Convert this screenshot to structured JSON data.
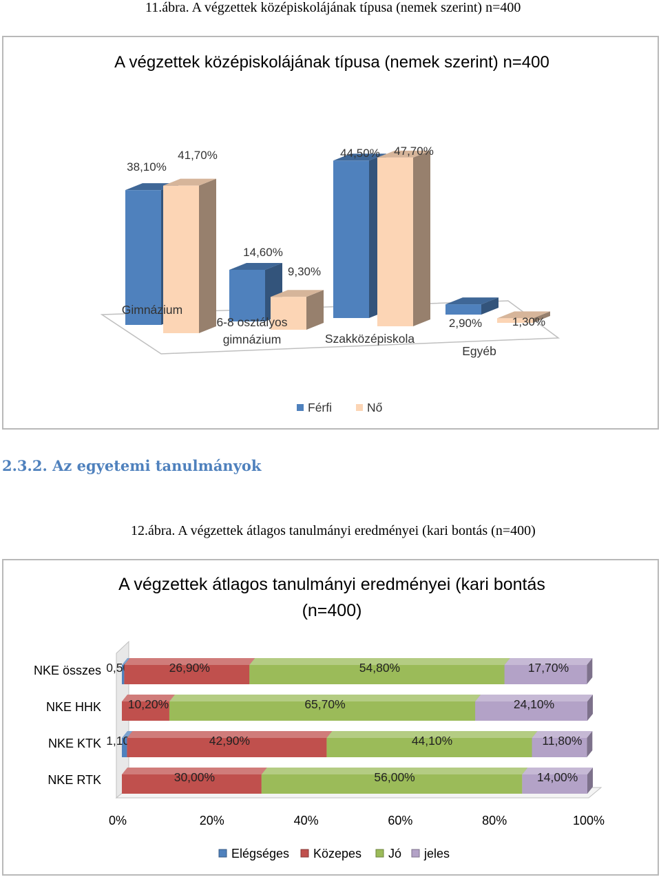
{
  "fig1": {
    "caption": "11.ábra. A végzettek középiskolájának típusa (nemek szerint) n=400",
    "chart_data": {
      "type": "bar",
      "title": "A végzettek középiskolájának típusa (nemek szerint) n=400",
      "categories": [
        "Gimnázium",
        "6-8 osztályos gimnázium",
        "Szakközépiskola",
        "Egyéb"
      ],
      "category_lines": [
        [
          "Gimnázium"
        ],
        [
          "6-8 osztályos",
          "gimnázium"
        ],
        [
          "Szakközépiskola"
        ],
        [
          "Egyéb"
        ]
      ],
      "series": [
        {
          "name": "Férfi",
          "values": [
            38.1,
            14.6,
            44.5,
            2.9
          ],
          "labels": [
            "38,10%",
            "14,60%",
            "44,50%",
            "2,90%"
          ]
        },
        {
          "name": "Nő",
          "values": [
            41.7,
            9.3,
            47.7,
            1.3
          ],
          "labels": [
            "41,70%",
            "9,30%",
            "47,70%",
            "1,30%"
          ]
        }
      ],
      "unit": "%",
      "legend": "bottom",
      "colors": [
        "#4f81bd",
        "#fcd5b5"
      ]
    }
  },
  "section_heading": "2.3.2. Az egyetemi tanulmányok",
  "fig2": {
    "caption": "12.ábra. A végzettek átlagos tanulmányi eredményei (kari bontás (n=400)",
    "chart_data": {
      "type": "bar",
      "orientation": "horizontal",
      "stacked": "percent",
      "title": "A végzettek átlagos tanulmányi eredményei (kari bontás (n=400)",
      "title_lines": [
        "A végzettek átlagos tanulmányi eredményei (kari bontás",
        "(n=400)"
      ],
      "categories": [
        "NKE összes",
        "NKE HHK",
        "NKE KTK",
        "NKE RTK"
      ],
      "series": [
        {
          "name": "Elégséges",
          "values": [
            0.5,
            0,
            1.1,
            0
          ],
          "labels": [
            "0,50%",
            "",
            "1,10%",
            ""
          ]
        },
        {
          "name": "Közepes",
          "values": [
            26.9,
            10.2,
            42.9,
            30.0
          ],
          "labels": [
            "26,90%",
            "10,20%",
            "42,90%",
            "30,00%"
          ]
        },
        {
          "name": "Jó",
          "values": [
            54.8,
            65.7,
            44.1,
            56.0
          ],
          "labels": [
            "54,80%",
            "65,70%",
            "44,10%",
            "56,00%"
          ]
        },
        {
          "name": "jeles",
          "values": [
            17.7,
            24.1,
            11.8,
            14.0
          ],
          "labels": [
            "17,70%",
            "24,10%",
            "11,80%",
            "14,00%"
          ]
        }
      ],
      "x_ticks": [
        "0%",
        "20%",
        "40%",
        "60%",
        "80%",
        "100%"
      ],
      "xlim": [
        0,
        100
      ],
      "legend": "bottom",
      "colors": [
        "#4f81bd",
        "#c0504d",
        "#9bbb59",
        "#b3a2c7"
      ]
    }
  }
}
